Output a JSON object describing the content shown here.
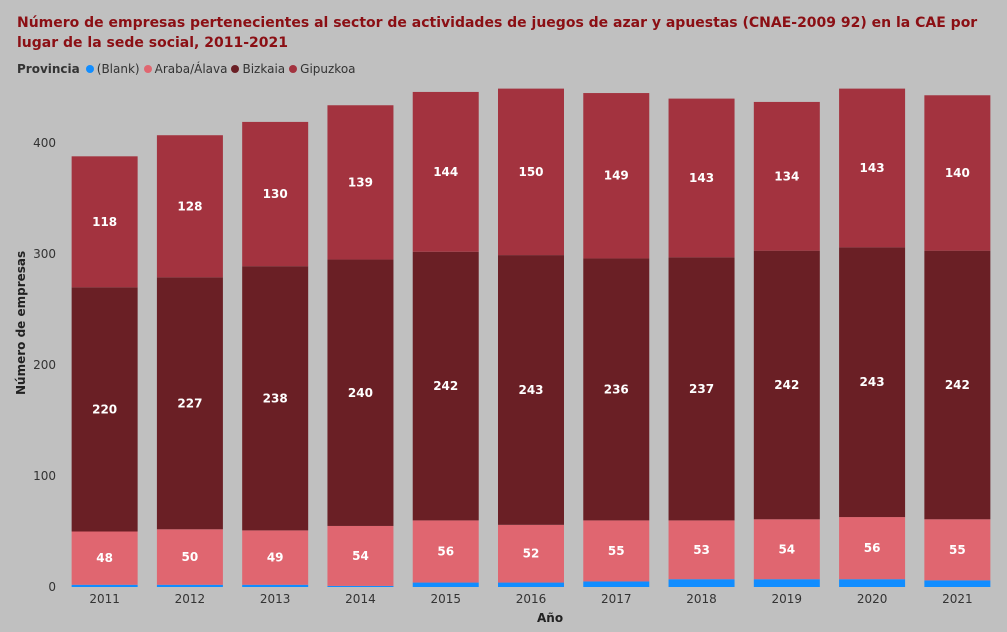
{
  "chart_data": {
    "type": "bar",
    "stacked": true,
    "title": "Número de empresas pertenecientes al sector de actividades de juegos de azar y apuestas (CNAE-2009 92) en la CAE por lugar de la sede social, 2011-2021",
    "xlabel": "Año",
    "ylabel": "Número de empresas",
    "legend_title": "Provincia",
    "legend_position": "top-left",
    "ylim": [
      0,
      450
    ],
    "yticks": [
      0,
      100,
      200,
      300,
      400
    ],
    "grid": false,
    "categories": [
      "2011",
      "2012",
      "2013",
      "2014",
      "2015",
      "2016",
      "2017",
      "2018",
      "2019",
      "2020",
      "2021"
    ],
    "series": [
      {
        "name": "(Blank)",
        "color": "#118dff",
        "values": [
          2,
          2,
          2,
          1,
          4,
          4,
          5,
          7,
          7,
          7,
          6
        ],
        "labels_shown": false
      },
      {
        "name": "Araba/Álava",
        "color": "#e06670",
        "values": [
          48,
          50,
          49,
          54,
          56,
          52,
          55,
          53,
          54,
          56,
          55
        ],
        "labels_shown": true
      },
      {
        "name": "Bizkaia",
        "color": "#6a1f25",
        "values": [
          220,
          227,
          238,
          240,
          242,
          243,
          236,
          237,
          242,
          243,
          242
        ],
        "labels_shown": true
      },
      {
        "name": "Gipuzkoa",
        "color": "#a3333f",
        "values": [
          118,
          128,
          130,
          139,
          144,
          150,
          149,
          143,
          134,
          143,
          140
        ],
        "labels_shown": true
      }
    ]
  }
}
